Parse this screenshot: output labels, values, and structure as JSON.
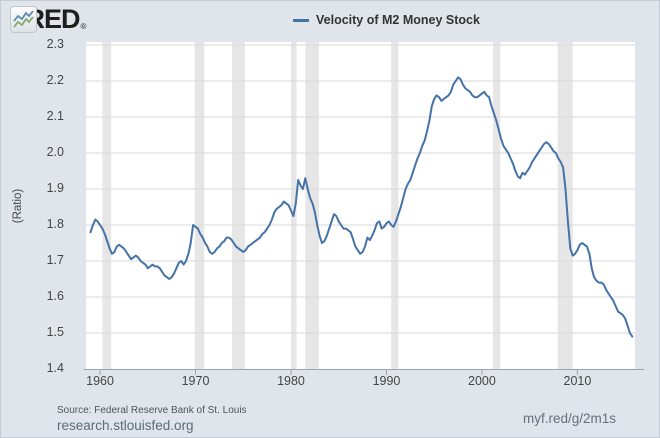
{
  "header": {
    "logo_text": "FRED",
    "logo_registered": "®",
    "legend_label": "Velocity of M2 Money Stock"
  },
  "footer": {
    "source": "Source: Federal Reserve Bank of St. Louis",
    "site": "research.stlouisfed.org",
    "short_url": "myf.red/g/2m1s"
  },
  "colors": {
    "background": "#dfe5eb",
    "plot_bg": "#ffffff",
    "gridline": "#d9d9d9",
    "recession_band": "#e6e6e6",
    "line": "#4572a7",
    "axis": "#9aa5ad",
    "tick_label": "#454545",
    "logo_icon_blue": "#5b8ab5",
    "logo_icon_green": "#85a86d"
  },
  "chart_data": {
    "type": "line",
    "title": "Velocity of M2 Money Stock",
    "xlabel": "",
    "ylabel": "(Ratio)",
    "grid": true,
    "legend_position": "top-center",
    "xlim": [
      1958.53,
      2016.03
    ],
    "ylim": [
      1.4,
      2.3
    ],
    "x_ticks": [
      1960,
      1970,
      1980,
      1990,
      2000,
      2010
    ],
    "y_ticks": [
      1.4,
      1.5,
      1.6,
      1.7,
      1.8,
      1.9,
      2.0,
      2.1,
      2.2,
      2.3
    ],
    "recession_bands": [
      [
        1960.25,
        1961.17
      ],
      [
        1969.92,
        1970.92
      ],
      [
        1973.83,
        1975.17
      ],
      [
        1980.0,
        1980.58
      ],
      [
        1981.5,
        1982.92
      ],
      [
        1990.5,
        1991.25
      ],
      [
        2001.17,
        2001.92
      ],
      [
        2007.92,
        2009.5
      ]
    ],
    "series": [
      {
        "name": "Velocity of M2 Money Stock",
        "color": "#4572a7",
        "points": [
          [
            1959,
            1.78
          ],
          [
            1959.25,
            1.8
          ],
          [
            1959.5,
            1.815
          ],
          [
            1959.75,
            1.81
          ],
          [
            1960,
            1.8
          ],
          [
            1960.25,
            1.79
          ],
          [
            1960.5,
            1.775
          ],
          [
            1960.75,
            1.755
          ],
          [
            1961,
            1.735
          ],
          [
            1961.25,
            1.72
          ],
          [
            1961.5,
            1.725
          ],
          [
            1961.75,
            1.74
          ],
          [
            1962,
            1.745
          ],
          [
            1962.25,
            1.74
          ],
          [
            1962.5,
            1.735
          ],
          [
            1962.75,
            1.725
          ],
          [
            1963,
            1.715
          ],
          [
            1963.25,
            1.705
          ],
          [
            1963.5,
            1.71
          ],
          [
            1963.75,
            1.715
          ],
          [
            1964,
            1.71
          ],
          [
            1964.25,
            1.7
          ],
          [
            1964.5,
            1.695
          ],
          [
            1964.75,
            1.69
          ],
          [
            1965,
            1.68
          ],
          [
            1965.25,
            1.685
          ],
          [
            1965.5,
            1.69
          ],
          [
            1965.75,
            1.685
          ],
          [
            1966,
            1.685
          ],
          [
            1966.25,
            1.68
          ],
          [
            1966.5,
            1.67
          ],
          [
            1966.75,
            1.66
          ],
          [
            1967,
            1.655
          ],
          [
            1967.25,
            1.65
          ],
          [
            1967.5,
            1.655
          ],
          [
            1967.75,
            1.665
          ],
          [
            1968,
            1.68
          ],
          [
            1968.25,
            1.695
          ],
          [
            1968.5,
            1.7
          ],
          [
            1968.75,
            1.69
          ],
          [
            1969,
            1.7
          ],
          [
            1969.25,
            1.72
          ],
          [
            1969.5,
            1.75
          ],
          [
            1969.75,
            1.8
          ],
          [
            1970,
            1.795
          ],
          [
            1970.25,
            1.79
          ],
          [
            1970.5,
            1.775
          ],
          [
            1970.75,
            1.765
          ],
          [
            1971,
            1.75
          ],
          [
            1971.25,
            1.74
          ],
          [
            1971.5,
            1.725
          ],
          [
            1971.75,
            1.72
          ],
          [
            1972,
            1.725
          ],
          [
            1972.25,
            1.735
          ],
          [
            1972.5,
            1.74
          ],
          [
            1972.75,
            1.75
          ],
          [
            1973,
            1.755
          ],
          [
            1973.25,
            1.765
          ],
          [
            1973.5,
            1.765
          ],
          [
            1973.75,
            1.76
          ],
          [
            1974,
            1.75
          ],
          [
            1974.25,
            1.74
          ],
          [
            1974.5,
            1.735
          ],
          [
            1974.75,
            1.73
          ],
          [
            1975,
            1.725
          ],
          [
            1975.25,
            1.73
          ],
          [
            1975.5,
            1.74
          ],
          [
            1975.75,
            1.745
          ],
          [
            1976,
            1.75
          ],
          [
            1976.25,
            1.755
          ],
          [
            1976.5,
            1.76
          ],
          [
            1976.75,
            1.765
          ],
          [
            1977,
            1.775
          ],
          [
            1977.25,
            1.78
          ],
          [
            1977.5,
            1.79
          ],
          [
            1977.75,
            1.8
          ],
          [
            1978,
            1.815
          ],
          [
            1978.25,
            1.835
          ],
          [
            1978.5,
            1.845
          ],
          [
            1978.75,
            1.85
          ],
          [
            1979,
            1.855
          ],
          [
            1979.25,
            1.865
          ],
          [
            1979.5,
            1.86
          ],
          [
            1979.75,
            1.855
          ],
          [
            1980,
            1.84
          ],
          [
            1980.25,
            1.825
          ],
          [
            1980.5,
            1.86
          ],
          [
            1980.75,
            1.925
          ],
          [
            1981,
            1.91
          ],
          [
            1981.25,
            1.9
          ],
          [
            1981.5,
            1.93
          ],
          [
            1981.75,
            1.9
          ],
          [
            1982,
            1.875
          ],
          [
            1982.25,
            1.86
          ],
          [
            1982.5,
            1.835
          ],
          [
            1982.75,
            1.8
          ],
          [
            1983,
            1.77
          ],
          [
            1983.25,
            1.75
          ],
          [
            1983.5,
            1.755
          ],
          [
            1983.75,
            1.77
          ],
          [
            1984,
            1.79
          ],
          [
            1984.25,
            1.81
          ],
          [
            1984.5,
            1.83
          ],
          [
            1984.75,
            1.825
          ],
          [
            1985,
            1.81
          ],
          [
            1985.25,
            1.8
          ],
          [
            1985.5,
            1.79
          ],
          [
            1985.75,
            1.79
          ],
          [
            1986,
            1.785
          ],
          [
            1986.25,
            1.78
          ],
          [
            1986.5,
            1.76
          ],
          [
            1986.75,
            1.74
          ],
          [
            1987,
            1.73
          ],
          [
            1987.25,
            1.72
          ],
          [
            1987.5,
            1.725
          ],
          [
            1987.75,
            1.74
          ],
          [
            1988,
            1.765
          ],
          [
            1988.25,
            1.758
          ],
          [
            1988.5,
            1.77
          ],
          [
            1988.75,
            1.785
          ],
          [
            1989,
            1.805
          ],
          [
            1989.25,
            1.81
          ],
          [
            1989.5,
            1.79
          ],
          [
            1989.75,
            1.795
          ],
          [
            1990,
            1.805
          ],
          [
            1990.25,
            1.81
          ],
          [
            1990.5,
            1.8
          ],
          [
            1990.75,
            1.795
          ],
          [
            1991,
            1.81
          ],
          [
            1991.25,
            1.83
          ],
          [
            1991.5,
            1.85
          ],
          [
            1991.75,
            1.875
          ],
          [
            1992,
            1.9
          ],
          [
            1992.25,
            1.915
          ],
          [
            1992.5,
            1.925
          ],
          [
            1992.75,
            1.945
          ],
          [
            1993,
            1.965
          ],
          [
            1993.25,
            1.985
          ],
          [
            1993.5,
            2.0
          ],
          [
            1993.75,
            2.02
          ],
          [
            1994,
            2.035
          ],
          [
            1994.25,
            2.06
          ],
          [
            1994.5,
            2.09
          ],
          [
            1994.75,
            2.13
          ],
          [
            1995,
            2.15
          ],
          [
            1995.25,
            2.16
          ],
          [
            1995.5,
            2.155
          ],
          [
            1995.75,
            2.145
          ],
          [
            1996,
            2.15
          ],
          [
            1996.25,
            2.155
          ],
          [
            1996.5,
            2.16
          ],
          [
            1996.75,
            2.17
          ],
          [
            1997,
            2.19
          ],
          [
            1997.25,
            2.2
          ],
          [
            1997.5,
            2.21
          ],
          [
            1997.75,
            2.205
          ],
          [
            1998,
            2.19
          ],
          [
            1998.25,
            2.18
          ],
          [
            1998.5,
            2.175
          ],
          [
            1998.75,
            2.17
          ],
          [
            1999,
            2.16
          ],
          [
            1999.25,
            2.155
          ],
          [
            1999.5,
            2.155
          ],
          [
            1999.75,
            2.16
          ],
          [
            2000,
            2.165
          ],
          [
            2000.25,
            2.17
          ],
          [
            2000.5,
            2.16
          ],
          [
            2000.75,
            2.155
          ],
          [
            2001,
            2.13
          ],
          [
            2001.25,
            2.11
          ],
          [
            2001.5,
            2.09
          ],
          [
            2001.75,
            2.065
          ],
          [
            2002,
            2.04
          ],
          [
            2002.25,
            2.02
          ],
          [
            2002.5,
            2.01
          ],
          [
            2002.75,
            2.0
          ],
          [
            2003,
            1.985
          ],
          [
            2003.25,
            1.97
          ],
          [
            2003.5,
            1.95
          ],
          [
            2003.75,
            1.935
          ],
          [
            2004,
            1.93
          ],
          [
            2004.25,
            1.945
          ],
          [
            2004.5,
            1.94
          ],
          [
            2004.75,
            1.95
          ],
          [
            2005,
            1.96
          ],
          [
            2005.25,
            1.975
          ],
          [
            2005.5,
            1.985
          ],
          [
            2005.75,
            1.995
          ],
          [
            2006,
            2.005
          ],
          [
            2006.25,
            2.015
          ],
          [
            2006.5,
            2.025
          ],
          [
            2006.75,
            2.03
          ],
          [
            2007,
            2.025
          ],
          [
            2007.25,
            2.015
          ],
          [
            2007.5,
            2.005
          ],
          [
            2007.75,
            2.0
          ],
          [
            2008,
            1.985
          ],
          [
            2008.25,
            1.975
          ],
          [
            2008.5,
            1.96
          ],
          [
            2008.75,
            1.9
          ],
          [
            2009,
            1.81
          ],
          [
            2009.25,
            1.735
          ],
          [
            2009.5,
            1.715
          ],
          [
            2009.75,
            1.72
          ],
          [
            2010,
            1.73
          ],
          [
            2010.25,
            1.745
          ],
          [
            2010.5,
            1.75
          ],
          [
            2010.75,
            1.745
          ],
          [
            2011,
            1.74
          ],
          [
            2011.25,
            1.72
          ],
          [
            2011.5,
            1.68
          ],
          [
            2011.75,
            1.655
          ],
          [
            2012,
            1.645
          ],
          [
            2012.25,
            1.64
          ],
          [
            2012.5,
            1.64
          ],
          [
            2012.75,
            1.635
          ],
          [
            2013,
            1.62
          ],
          [
            2013.25,
            1.61
          ],
          [
            2013.5,
            1.6
          ],
          [
            2013.75,
            1.59
          ],
          [
            2014,
            1.575
          ],
          [
            2014.25,
            1.56
          ],
          [
            2014.5,
            1.555
          ],
          [
            2014.75,
            1.55
          ],
          [
            2015,
            1.54
          ],
          [
            2015.25,
            1.52
          ],
          [
            2015.5,
            1.5
          ],
          [
            2015.75,
            1.49
          ]
        ]
      }
    ]
  }
}
